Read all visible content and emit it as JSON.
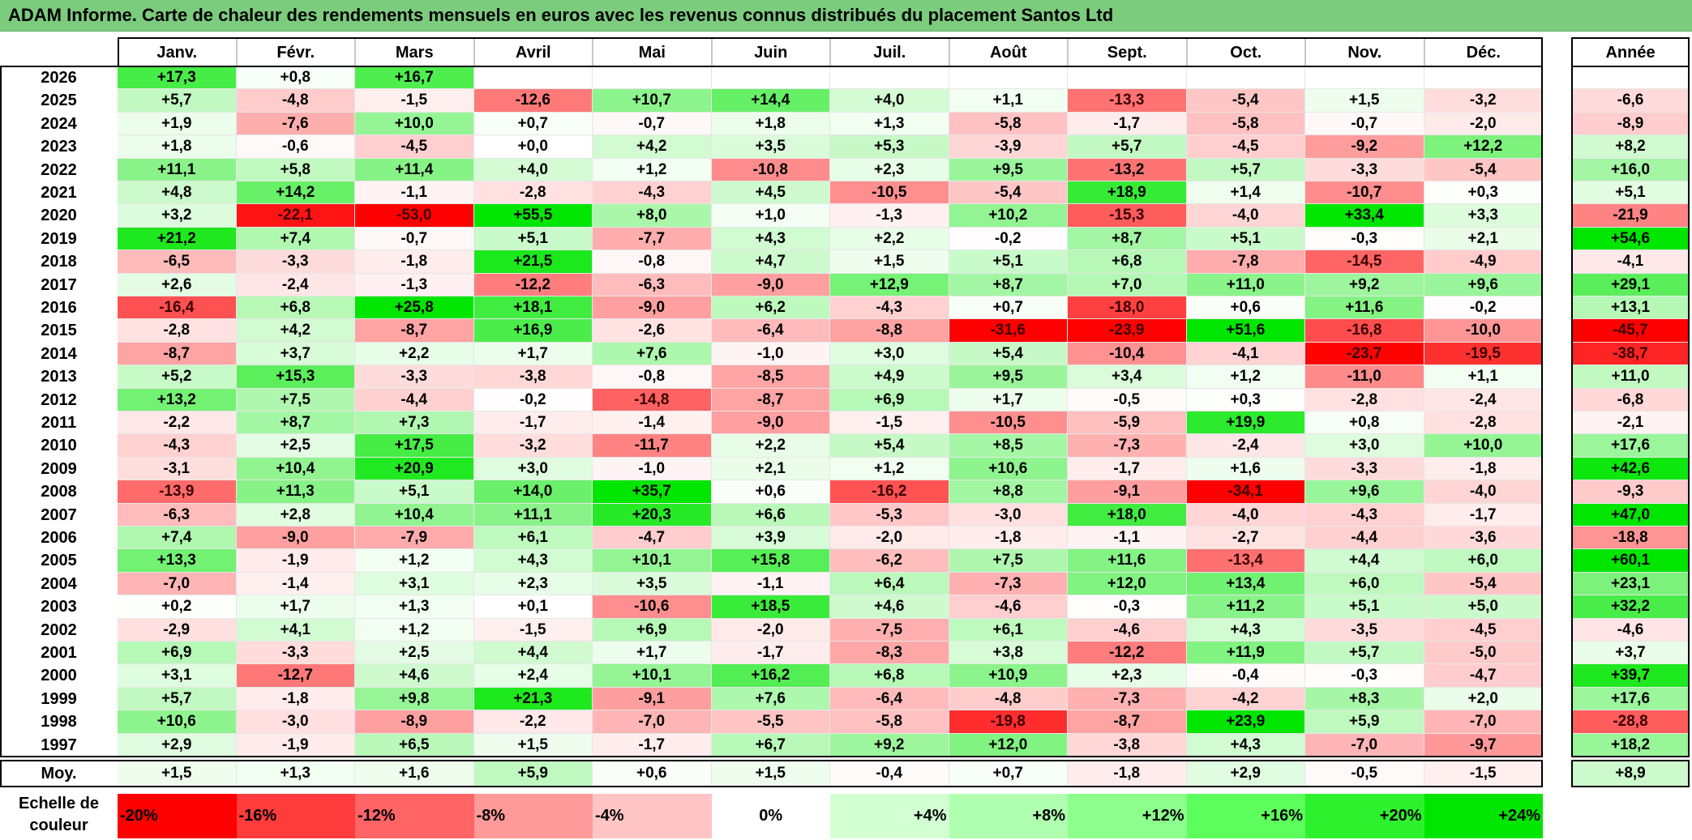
{
  "title": "ADAM Informe. Carte de chaleur des rendements mensuels en euros avec les revenus connus distribués du placement Santos Ltd",
  "chart_data": {
    "type": "heatmap",
    "title": "ADAM Informe. Carte de chaleur des rendements mensuels en euros avec les revenus connus distribués du placement Santos Ltd",
    "columns": [
      "Janv.",
      "Févr.",
      "Mars",
      "Avril",
      "Mai",
      "Juin",
      "Juil.",
      "Août",
      "Sept.",
      "Oct.",
      "Nov.",
      "Déc."
    ],
    "annual_header": "Année",
    "rows": [
      {
        "year": "2026",
        "values": [
          17.3,
          0.8,
          16.7,
          null,
          null,
          null,
          null,
          null,
          null,
          null,
          null,
          null
        ],
        "annual": null
      },
      {
        "year": "2025",
        "values": [
          5.7,
          -4.8,
          -1.5,
          -12.6,
          10.7,
          14.4,
          4.0,
          1.1,
          -13.3,
          -5.4,
          1.5,
          -3.2
        ],
        "annual": -6.6
      },
      {
        "year": "2024",
        "values": [
          1.9,
          -7.6,
          10.0,
          0.7,
          -0.7,
          1.8,
          1.3,
          -5.8,
          -1.7,
          -5.8,
          -0.7,
          -2.0
        ],
        "annual": -8.9
      },
      {
        "year": "2023",
        "values": [
          1.8,
          -0.6,
          -4.5,
          -0.0,
          4.2,
          3.5,
          5.3,
          -3.9,
          5.7,
          -4.5,
          -9.2,
          12.2
        ],
        "annual": 8.2
      },
      {
        "year": "2022",
        "values": [
          11.1,
          5.8,
          11.4,
          4.0,
          1.2,
          -10.8,
          2.3,
          9.5,
          -13.2,
          5.7,
          -3.3,
          -5.4
        ],
        "annual": 16.0
      },
      {
        "year": "2021",
        "values": [
          4.8,
          14.2,
          -1.1,
          -2.8,
          -4.3,
          4.5,
          -10.5,
          -5.4,
          18.9,
          1.4,
          -10.7,
          0.3
        ],
        "annual": 5.1
      },
      {
        "year": "2020",
        "values": [
          3.2,
          -22.1,
          -53.0,
          55.5,
          8.0,
          1.0,
          -1.3,
          10.2,
          -15.3,
          -4.0,
          33.4,
          3.3
        ],
        "annual": -21.9
      },
      {
        "year": "2019",
        "values": [
          21.2,
          7.4,
          -0.7,
          5.1,
          -7.7,
          4.3,
          2.2,
          -0.2,
          8.7,
          5.1,
          -0.3,
          2.1
        ],
        "annual": 54.6
      },
      {
        "year": "2018",
        "values": [
          -6.5,
          -3.3,
          -1.8,
          21.5,
          -0.8,
          4.7,
          1.5,
          5.1,
          6.8,
          -7.8,
          -14.5,
          -4.9
        ],
        "annual": -4.1
      },
      {
        "year": "2017",
        "values": [
          2.6,
          -2.4,
          -1.3,
          -12.2,
          -6.3,
          -9.0,
          12.9,
          8.7,
          7.0,
          11.0,
          9.2,
          9.6
        ],
        "annual": 29.1
      },
      {
        "year": "2016",
        "values": [
          -16.4,
          6.8,
          25.8,
          18.1,
          -9.0,
          6.2,
          -4.3,
          0.7,
          -18.0,
          0.6,
          11.6,
          -0.2
        ],
        "annual": 13.1
      },
      {
        "year": "2015",
        "values": [
          -2.8,
          4.2,
          -8.7,
          16.9,
          -2.6,
          -6.4,
          -8.8,
          -31.6,
          -23.9,
          51.6,
          -16.8,
          -10.0
        ],
        "annual": -45.7
      },
      {
        "year": "2014",
        "values": [
          -8.7,
          3.7,
          2.2,
          1.7,
          7.6,
          -1.0,
          3.0,
          5.4,
          -10.4,
          -4.1,
          -23.7,
          -19.5
        ],
        "annual": -38.7
      },
      {
        "year": "2013",
        "values": [
          5.2,
          15.3,
          -3.3,
          -3.8,
          -0.8,
          -8.5,
          4.9,
          9.5,
          3.4,
          1.2,
          -11.0,
          1.1
        ],
        "annual": 11.0
      },
      {
        "year": "2012",
        "values": [
          13.2,
          7.5,
          -4.4,
          -0.2,
          -14.8,
          -8.7,
          6.9,
          1.7,
          -0.5,
          0.3,
          -2.8,
          -2.4
        ],
        "annual": -6.8
      },
      {
        "year": "2011",
        "values": [
          -2.2,
          8.7,
          7.3,
          -1.7,
          -1.4,
          -9.0,
          -1.5,
          -10.5,
          -5.9,
          19.9,
          0.8,
          -2.8
        ],
        "annual": -2.1
      },
      {
        "year": "2010",
        "values": [
          -4.3,
          2.5,
          17.5,
          -3.2,
          -11.7,
          2.2,
          5.4,
          8.5,
          -7.3,
          -2.4,
          3.0,
          10.0
        ],
        "annual": 17.6
      },
      {
        "year": "2009",
        "values": [
          -3.1,
          10.4,
          20.9,
          3.0,
          -1.0,
          2.1,
          1.2,
          10.6,
          -1.7,
          1.6,
          -3.3,
          -1.8
        ],
        "annual": 42.6
      },
      {
        "year": "2008",
        "values": [
          -13.9,
          11.3,
          5.1,
          14.0,
          35.7,
          0.6,
          -16.2,
          8.8,
          -9.1,
          -34.1,
          9.6,
          -4.0
        ],
        "annual": -9.3
      },
      {
        "year": "2007",
        "values": [
          -6.3,
          2.8,
          10.4,
          11.1,
          20.3,
          6.6,
          -5.3,
          -3.0,
          18.0,
          -4.0,
          -4.3,
          -1.7
        ],
        "annual": 47.0
      },
      {
        "year": "2006",
        "values": [
          7.4,
          -9.0,
          -7.9,
          6.1,
          -4.7,
          3.9,
          -2.0,
          -1.8,
          -1.1,
          -2.7,
          -4.4,
          -3.6
        ],
        "annual": -18.8
      },
      {
        "year": "2005",
        "values": [
          13.3,
          -1.9,
          1.2,
          4.3,
          10.1,
          15.8,
          -6.2,
          7.5,
          11.6,
          -13.4,
          4.4,
          6.0
        ],
        "annual": 60.1
      },
      {
        "year": "2004",
        "values": [
          -7.0,
          -1.4,
          3.1,
          2.3,
          3.5,
          -1.1,
          6.4,
          -7.3,
          12.0,
          13.4,
          6.0,
          -5.4
        ],
        "annual": 23.1
      },
      {
        "year": "2003",
        "values": [
          0.2,
          1.7,
          1.3,
          0.1,
          -10.6,
          18.5,
          4.6,
          -4.6,
          -0.3,
          11.2,
          5.1,
          5.0
        ],
        "annual": 32.2
      },
      {
        "year": "2002",
        "values": [
          -2.9,
          4.1,
          1.2,
          -1.5,
          6.9,
          -2.0,
          -7.5,
          6.1,
          -4.6,
          4.3,
          -3.5,
          -4.5
        ],
        "annual": -4.6
      },
      {
        "year": "2001",
        "values": [
          6.9,
          -3.3,
          2.5,
          4.4,
          1.7,
          -1.7,
          -8.3,
          3.8,
          -12.2,
          11.9,
          5.7,
          -5.0
        ],
        "annual": 3.7
      },
      {
        "year": "2000",
        "values": [
          3.1,
          -12.7,
          4.6,
          2.4,
          10.1,
          16.2,
          6.8,
          10.9,
          2.3,
          -0.4,
          -0.3,
          -4.7
        ],
        "annual": 39.7
      },
      {
        "year": "1999",
        "values": [
          5.7,
          -1.8,
          9.8,
          21.3,
          -9.1,
          7.6,
          -6.4,
          -4.8,
          -7.3,
          -4.2,
          8.3,
          2.0
        ],
        "annual": 17.6
      },
      {
        "year": "1998",
        "values": [
          10.6,
          -3.0,
          -8.9,
          -2.2,
          -7.0,
          -5.5,
          -5.8,
          -19.8,
          -8.7,
          23.9,
          5.9,
          -7.0
        ],
        "annual": -28.8
      },
      {
        "year": "1997",
        "values": [
          2.9,
          -1.9,
          6.5,
          1.5,
          -1.7,
          6.7,
          9.2,
          12.0,
          -3.8,
          4.3,
          -7.0,
          -9.7
        ],
        "annual": 18.2
      }
    ],
    "average": {
      "label": "Moy.",
      "values": [
        1.5,
        1.3,
        1.6,
        5.9,
        0.6,
        1.5,
        -0.4,
        0.7,
        -1.8,
        2.9,
        -0.5,
        -1.5
      ],
      "annual": 8.9
    },
    "scale": {
      "label": "Echelle de couleur",
      "steps": [
        "-20%",
        "-16%",
        "-12%",
        "-8%",
        "-4%",
        "0%",
        "+4%",
        "+8%",
        "+12%",
        "+16%",
        "+20%",
        "+24%"
      ],
      "colors": [
        "#ff0000",
        "#ff3b3b",
        "#ff6565",
        "#ff9a9a",
        "#ffc5c5",
        "#ffffff",
        "#d2ffd2",
        "#b0ffb0",
        "#8cff8c",
        "#5cff5c",
        "#2ef12e",
        "#00e600"
      ]
    }
  }
}
